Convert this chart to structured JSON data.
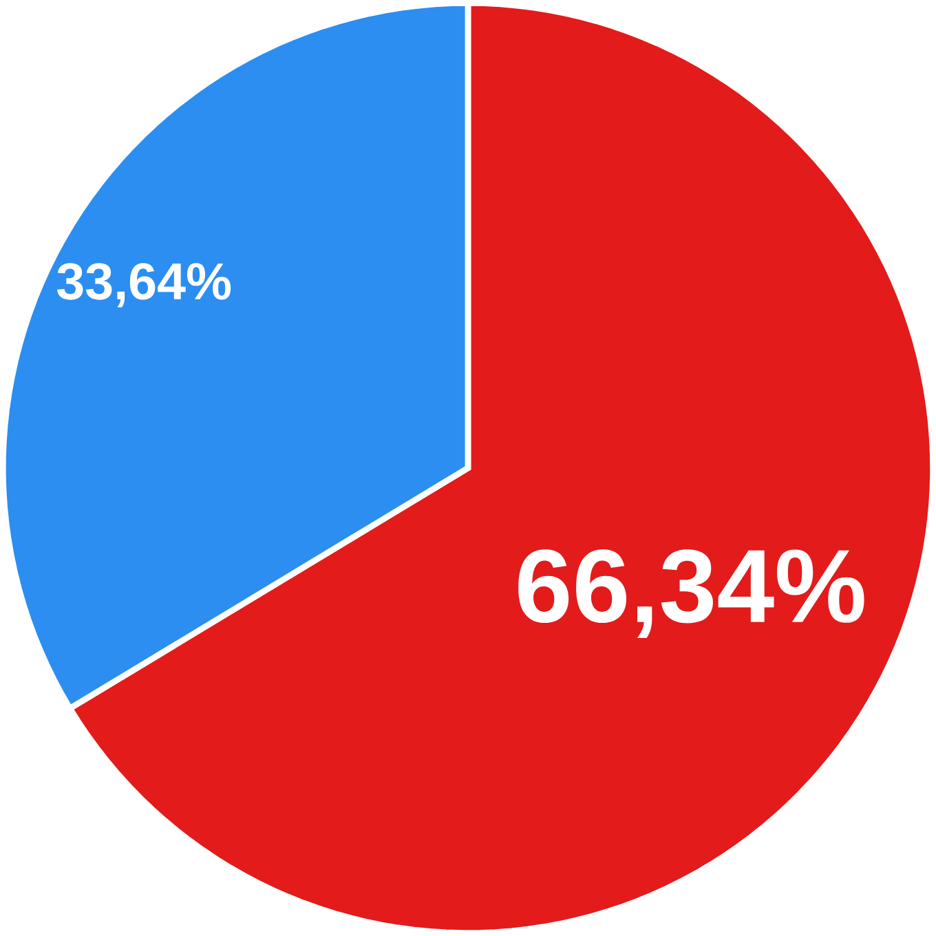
{
  "chart_data": {
    "type": "pie",
    "categories": [
      null,
      null
    ],
    "values": [
      66.34,
      33.64
    ],
    "colors": [
      "#e31b1b",
      "#2b8ef0"
    ],
    "value_labels": [
      "66,34%",
      "33,64%"
    ]
  }
}
